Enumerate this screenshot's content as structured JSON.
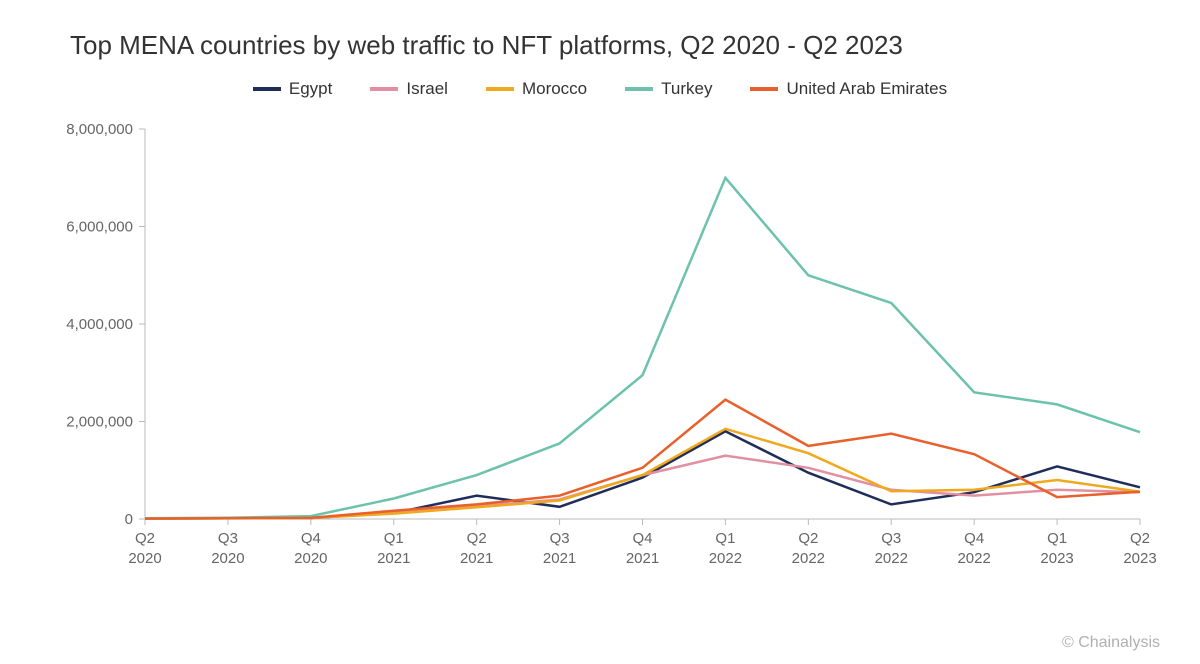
{
  "chart": {
    "type": "line",
    "title": "Top MENA countries by web traffic to NFT platforms, Q2 2020 - Q2 2023",
    "title_fontsize": 26,
    "title_color": "#333333",
    "background_color": "#ffffff",
    "axis_color": "#bbbbbb",
    "label_color": "#666666",
    "label_fontsize": 15,
    "line_width": 2.5,
    "legend_fontsize": 17,
    "legend_position": "top-center",
    "ylim": [
      0,
      8000000
    ],
    "ytick_step": 2000000,
    "yticks": [
      {
        "v": 0,
        "label": "0"
      },
      {
        "v": 2000000,
        "label": "2,000,000"
      },
      {
        "v": 4000000,
        "label": "4,000,000"
      },
      {
        "v": 6000000,
        "label": "6,000,000"
      },
      {
        "v": 8000000,
        "label": "8,000,000"
      }
    ],
    "categories": [
      {
        "q": "Q2",
        "y": "2020"
      },
      {
        "q": "Q3",
        "y": "2020"
      },
      {
        "q": "Q4",
        "y": "2020"
      },
      {
        "q": "Q1",
        "y": "2021"
      },
      {
        "q": "Q2",
        "y": "2021"
      },
      {
        "q": "Q3",
        "y": "2021"
      },
      {
        "q": "Q4",
        "y": "2021"
      },
      {
        "q": "Q1",
        "y": "2022"
      },
      {
        "q": "Q2",
        "y": "2022"
      },
      {
        "q": "Q3",
        "y": "2022"
      },
      {
        "q": "Q4",
        "y": "2022"
      },
      {
        "q": "Q1",
        "y": "2023"
      },
      {
        "q": "Q2",
        "y": "2023"
      }
    ],
    "series": [
      {
        "name": "Egypt",
        "color": "#1f2d5a",
        "values": [
          10000,
          15000,
          20000,
          120000,
          480000,
          250000,
          850000,
          1800000,
          950000,
          300000,
          550000,
          1080000,
          650000
        ]
      },
      {
        "name": "Israel",
        "color": "#e28fa1",
        "values": [
          12000,
          18000,
          25000,
          130000,
          260000,
          400000,
          900000,
          1300000,
          1050000,
          600000,
          480000,
          600000,
          550000
        ]
      },
      {
        "name": "Morocco",
        "color": "#f0a81e",
        "values": [
          8000,
          12000,
          20000,
          110000,
          240000,
          380000,
          900000,
          1850000,
          1350000,
          570000,
          600000,
          800000,
          560000
        ]
      },
      {
        "name": "Turkey",
        "color": "#6cc2ab",
        "values": [
          15000,
          25000,
          60000,
          420000,
          900000,
          1550000,
          2950000,
          7000000,
          5000000,
          4430000,
          2600000,
          2350000,
          1780000
        ]
      },
      {
        "name": "United Arab Emirates",
        "color": "#e8602c",
        "values": [
          9000,
          14000,
          22000,
          170000,
          300000,
          480000,
          1050000,
          2450000,
          1500000,
          1750000,
          1330000,
          450000,
          560000
        ]
      }
    ],
    "attribution": "© Chainalysis",
    "attribution_color": "#b0b0b0",
    "attribution_fontsize": 16
  }
}
